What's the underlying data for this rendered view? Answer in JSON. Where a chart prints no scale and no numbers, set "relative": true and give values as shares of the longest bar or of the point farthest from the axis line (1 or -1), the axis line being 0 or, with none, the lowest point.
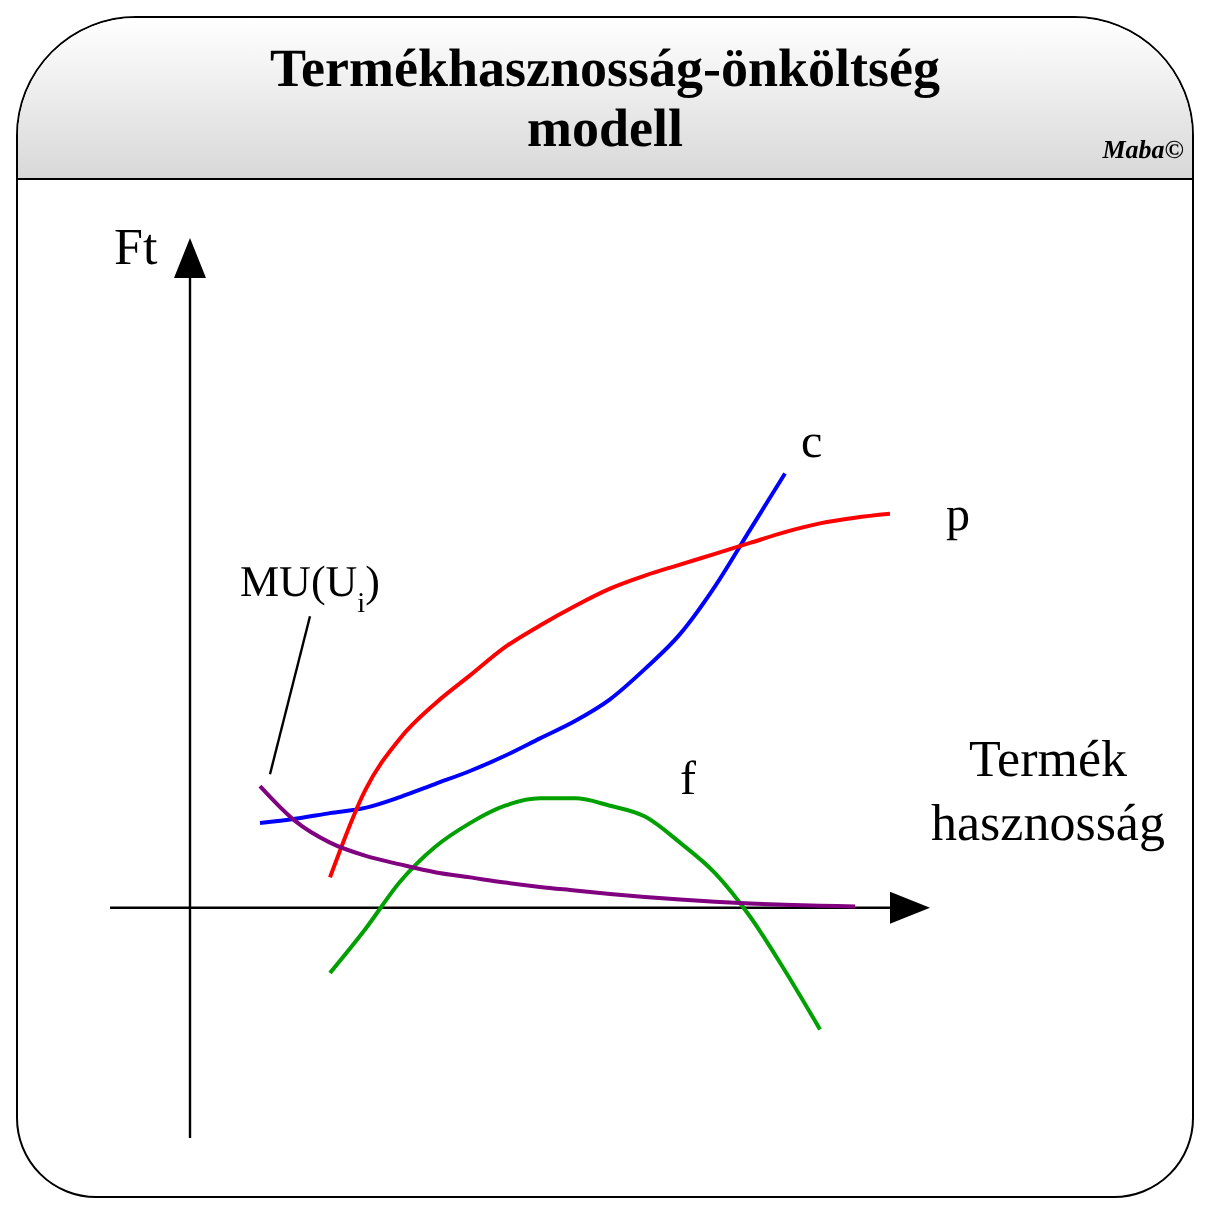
{
  "chart_data": {
    "type": "line",
    "title": "Termékhasznosság-önköltség modell",
    "xlabel": "Termék hasznosság",
    "ylabel": "Ft",
    "annotations": [
      "Maba©"
    ],
    "relative": true,
    "marker": "none",
    "line_style": "solid",
    "categories": [
      null,
      null,
      null,
      null,
      null,
      null,
      null,
      null,
      null,
      null,
      null,
      null,
      null,
      null,
      null,
      null,
      null,
      null,
      null,
      null,
      null
    ],
    "series": [
      {
        "name": "c",
        "color": "#0000ff",
        "values": [
          null,
          null,
          0.195,
          0.205,
          0.218,
          0.23,
          0.255,
          0.285,
          0.315,
          0.35,
          0.39,
          0.43,
          0.48,
          0.55,
          0.63,
          0.74,
          0.87,
          1,
          null,
          null,
          null
        ]
      },
      {
        "name": "p",
        "color": "#ff0000",
        "values": [
          null,
          null,
          null,
          null,
          0.07,
          0.27,
          0.39,
          0.47,
          0.535,
          0.6,
          0.65,
          0.695,
          0.735,
          0.765,
          0.79,
          0.815,
          0.84,
          0.865,
          0.885,
          0.898,
          0.907
        ]
      },
      {
        "name": "f",
        "color": "#00a000",
        "values": [
          null,
          null,
          null,
          null,
          -0.15,
          -0.05,
          0.06,
          0.14,
          0.195,
          0.235,
          0.252,
          0.252,
          0.235,
          0.21,
          0.15,
          0.08,
          -0.02,
          -0.145,
          -0.28,
          null,
          null
        ]
      },
      {
        "name": "MU(U$_{i}$)",
        "color": "#800080",
        "values": [
          null,
          null,
          0.28,
          0.2,
          0.15,
          0.12,
          0.1,
          0.082,
          0.07,
          0.058,
          0.048,
          0.04,
          0.032,
          0.025,
          0.019,
          0.014,
          0.01,
          0.007,
          0.005,
          0.003,
          null
        ]
      }
    ]
  }
}
